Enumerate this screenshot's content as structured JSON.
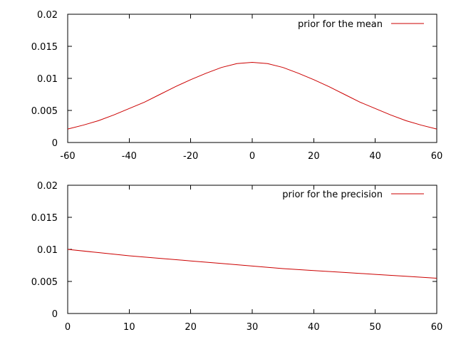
{
  "chart_data": [
    {
      "type": "line",
      "title": "",
      "xlabel": "",
      "ylabel": "",
      "xlim": [
        -60,
        60
      ],
      "ylim": [
        0,
        0.02
      ],
      "xticks": [
        "-60",
        "-40",
        "-20",
        "0",
        "20",
        "40",
        "60"
      ],
      "yticks": [
        "0",
        "0.005",
        "0.01",
        "0.015",
        "0.02"
      ],
      "grid": false,
      "legend_position": "top-right",
      "series": [
        {
          "name": "prior for the mean",
          "color": "#cc0000",
          "x": [
            -60,
            -55,
            -50,
            -45,
            -40,
            -35,
            -30,
            -25,
            -20,
            -15,
            -10,
            -5,
            0,
            5,
            10,
            15,
            20,
            25,
            30,
            35,
            40,
            45,
            50,
            55,
            60
          ],
          "y": [
            0.0021,
            0.0027,
            0.0034,
            0.0043,
            0.0053,
            0.0063,
            0.0075,
            0.0087,
            0.0098,
            0.0108,
            0.0117,
            0.0123,
            0.0125,
            0.0123,
            0.0117,
            0.0108,
            0.0098,
            0.0087,
            0.0075,
            0.0063,
            0.0053,
            0.0043,
            0.0034,
            0.0027,
            0.0021
          ]
        }
      ]
    },
    {
      "type": "line",
      "title": "",
      "xlabel": "",
      "ylabel": "",
      "xlim": [
        0,
        60
      ],
      "ylim": [
        0,
        0.02
      ],
      "xticks": [
        "0",
        "10",
        "20",
        "30",
        "40",
        "50",
        "60"
      ],
      "yticks": [
        "0",
        "0.005",
        "0.01",
        "0.015",
        "0.02"
      ],
      "grid": false,
      "legend_position": "top-right",
      "series": [
        {
          "name": "prior for the precision",
          "color": "#cc0000",
          "x": [
            0,
            5,
            10,
            15,
            20,
            25,
            30,
            35,
            40,
            45,
            50,
            55,
            60
          ],
          "y": [
            0.01,
            0.0095,
            0.009,
            0.0086,
            0.0082,
            0.0078,
            0.0074,
            0.007,
            0.0067,
            0.0064,
            0.0061,
            0.0058,
            0.0055
          ]
        }
      ]
    }
  ]
}
